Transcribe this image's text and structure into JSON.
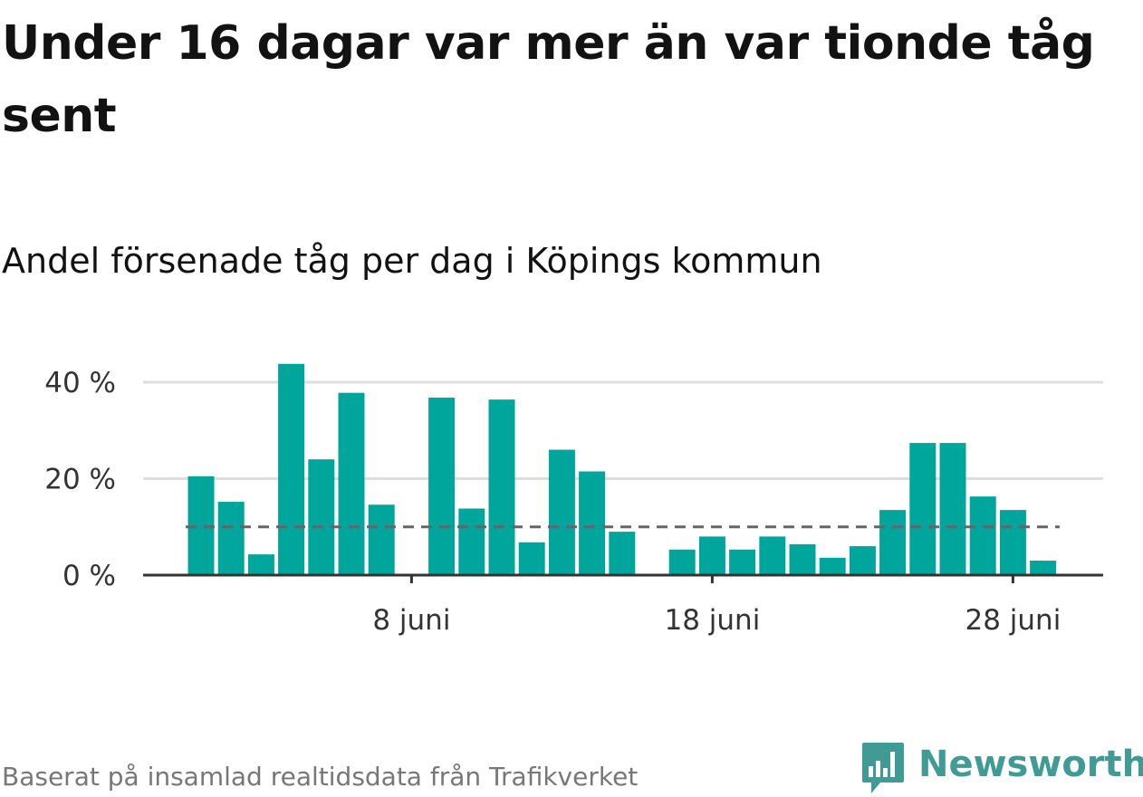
{
  "chart_data": {
    "type": "bar",
    "title": "Under 16 dagar var mer än var tionde tåg sent",
    "subtitle": "Andel försenade tåg per dag i Köpings kommun",
    "xlabel": "",
    "ylabel": "",
    "x": [
      "1 juni",
      "2 juni",
      "3 juni",
      "4 juni",
      "5 juni",
      "6 juni",
      "7 juni",
      "8 juni",
      "9 juni",
      "10 juni",
      "11 juni",
      "12 juni",
      "13 juni",
      "14 juni",
      "15 juni",
      "16 juni",
      "17 juni",
      "18 juni",
      "19 juni",
      "20 juni",
      "21 juni",
      "22 juni",
      "23 juni",
      "24 juni",
      "25 juni",
      "26 juni",
      "27 juni",
      "28 juni",
      "29 juni"
    ],
    "values": [
      20.5,
      15.2,
      4.3,
      43.8,
      24.0,
      37.8,
      14.6,
      null,
      36.8,
      13.8,
      36.4,
      6.8,
      26.0,
      21.5,
      9.0,
      null,
      5.3,
      8.0,
      5.3,
      8.0,
      6.4,
      3.6,
      6.0,
      13.5,
      27.4,
      27.4,
      16.3,
      13.5,
      3.0
    ],
    "ylim": [
      0,
      45
    ],
    "y_ticks": [
      0,
      20,
      40
    ],
    "y_tick_labels": [
      "0 %",
      "20 %",
      "40 %"
    ],
    "x_ticks": [
      "8 juni",
      "18 juni",
      "28 juni"
    ],
    "reference_line": 10,
    "grid": true,
    "colors": {
      "bar": "#00a59b",
      "reference": "#666666",
      "grid": "#dddddd",
      "axis": "#333333"
    }
  },
  "source": "Baserat på insamlad realtidsdata från Trafikverket",
  "brand": {
    "name": "Newsworthy",
    "color": "#3f9b94",
    "icon": "bar-chart-speech-bubble-icon"
  }
}
